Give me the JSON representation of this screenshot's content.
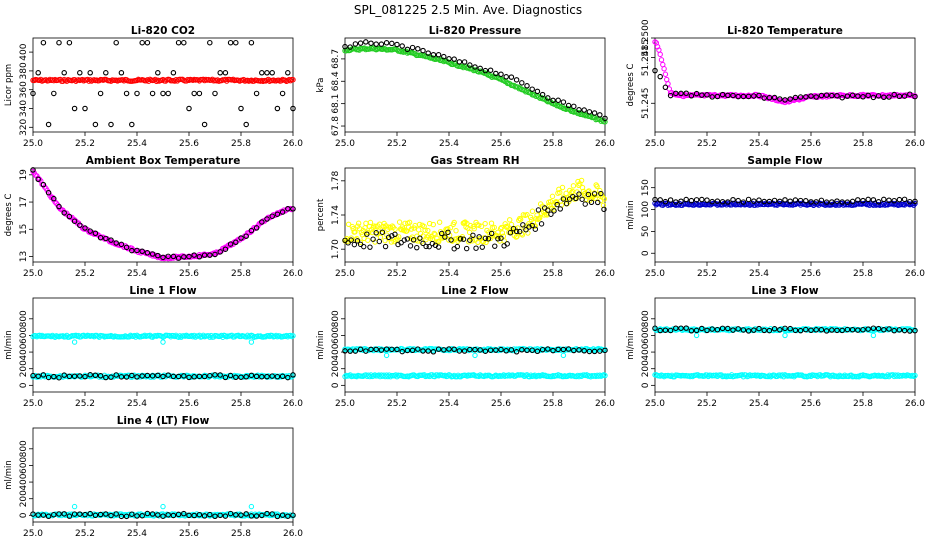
{
  "page_title": "SPL_081225  2.5 Min. Ave. Diagnostics",
  "chart_data": [
    {
      "id": "co2",
      "type": "scatter",
      "title": "Li-820 CO2",
      "xlabel": "",
      "ylabel": "Licor ppm",
      "xlim": [
        25.0,
        26.0
      ],
      "ylim": [
        315,
        415
      ],
      "x_ticks": [
        25.0,
        25.2,
        25.4,
        25.6,
        25.8,
        26.0
      ],
      "x_tick_labels": [
        "25.0",
        "25.2",
        "25.4",
        "25.6",
        "25.8",
        "26.0"
      ],
      "y_ticks": [
        320,
        340,
        360,
        380,
        400
      ],
      "y_tick_labels": [
        "320",
        "340",
        "360",
        "380",
        "400"
      ],
      "series": [
        {
          "name": "primary",
          "color": "#ff0000",
          "kind": "dense",
          "values_desc": "constant",
          "y": 370
        },
        {
          "name": "secondary",
          "color": "#000000",
          "kind": "band_scatter",
          "y_levels": [
            410,
            378,
            356,
            340,
            323
          ]
        }
      ]
    },
    {
      "id": "pressure",
      "type": "scatter",
      "title": "Li-820 Pressure",
      "xlabel": "",
      "ylabel": "kPa",
      "xlim": [
        25.0,
        26.0
      ],
      "ylim": [
        67.72,
        68.98
      ],
      "x_ticks": [
        25.0,
        25.2,
        25.4,
        25.6,
        25.8,
        26.0
      ],
      "x_tick_labels": [
        "25.0",
        "25.2",
        "25.4",
        "25.6",
        "25.8",
        "26.0"
      ],
      "y_ticks": [
        67.8,
        68.1,
        68.4,
        68.7
      ],
      "y_tick_labels": [
        "67.8",
        "68.1",
        "68.4",
        "68.7"
      ],
      "series": [
        {
          "name": "primary",
          "color": "#22cc22",
          "kind": "dense",
          "x": [
            25.0,
            25.1,
            25.2,
            25.3,
            25.4,
            25.5,
            25.6,
            25.7,
            25.8,
            25.9,
            26.0
          ],
          "y": [
            68.82,
            68.84,
            68.82,
            68.74,
            68.65,
            68.55,
            68.42,
            68.26,
            68.1,
            67.97,
            67.86
          ]
        },
        {
          "name": "secondary",
          "color": "#000000",
          "kind": "sparse",
          "x": [
            25.0,
            25.1,
            25.2,
            25.3,
            25.4,
            25.5,
            25.6,
            25.7,
            25.8,
            25.9,
            26.0
          ],
          "y": [
            68.86,
            68.92,
            68.88,
            68.8,
            68.7,
            68.6,
            68.5,
            68.34,
            68.16,
            68.03,
            67.92
          ]
        }
      ]
    },
    {
      "id": "li_temp",
      "type": "scatter",
      "title": "Li-820 Temperature",
      "xlabel": "",
      "ylabel": "degrees C",
      "xlim": [
        25.0,
        26.0
      ],
      "ylim": [
        51.2428,
        51.25
      ],
      "x_ticks": [
        25.0,
        25.2,
        25.4,
        25.6,
        25.8,
        26.0
      ],
      "x_tick_labels": [
        "25.0",
        "25.2",
        "25.4",
        "25.6",
        "25.8",
        "26.0"
      ],
      "y_ticks": [
        51.245,
        51.2485,
        51.25
      ],
      "y_tick_labels": [
        "51.245",
        "51.2485",
        "51.2500"
      ],
      "series": [
        {
          "name": "primary",
          "color": "#ff00ff",
          "kind": "dense",
          "x": [
            25.0,
            25.02,
            25.04,
            25.06,
            25.1,
            25.4,
            25.5,
            25.6,
            25.7,
            25.8,
            26.0
          ],
          "y": [
            51.2498,
            51.2488,
            51.2472,
            51.2458,
            51.2456,
            51.2456,
            51.2451,
            51.2455,
            51.2456,
            51.2456,
            51.2456
          ]
        },
        {
          "name": "secondary",
          "color": "#000000",
          "kind": "sparse",
          "x": [
            25.0,
            25.03,
            25.06,
            25.2,
            25.4,
            25.5,
            25.6,
            26.0
          ],
          "y": [
            51.2476,
            51.2466,
            51.2457,
            51.2456,
            51.2455,
            51.2453,
            51.2455,
            51.2456
          ]
        }
      ]
    },
    {
      "id": "ambient",
      "type": "scatter",
      "title": "Ambient Box Temperature",
      "xlabel": "",
      "ylabel": "degrees C",
      "xlim": [
        25.0,
        26.0
      ],
      "ylim": [
        12.6,
        19.5
      ],
      "x_ticks": [
        25.0,
        25.2,
        25.4,
        25.6,
        25.8,
        26.0
      ],
      "x_tick_labels": [
        "25.0",
        "25.2",
        "25.4",
        "25.6",
        "25.8",
        "26.0"
      ],
      "y_ticks": [
        13,
        15,
        17,
        19
      ],
      "y_tick_labels": [
        "13",
        "15",
        "17",
        "19"
      ],
      "series": [
        {
          "name": "primary",
          "color": "#ff00ff",
          "kind": "dense",
          "x": [
            25.0,
            25.1,
            25.2,
            25.3,
            25.4,
            25.5,
            25.6,
            25.7,
            25.8,
            25.9,
            25.98
          ],
          "y": [
            19.3,
            16.6,
            15.0,
            14.1,
            13.4,
            12.9,
            13.0,
            13.2,
            14.3,
            15.8,
            16.5
          ]
        },
        {
          "name": "secondary",
          "color": "#000000",
          "kind": "sparse",
          "x": [
            25.0,
            25.1,
            25.2,
            25.3,
            25.4,
            25.5,
            25.6,
            25.7,
            25.8,
            25.9,
            25.98
          ],
          "y": [
            19.3,
            16.6,
            15.0,
            14.1,
            13.4,
            12.9,
            13.0,
            13.2,
            14.3,
            15.8,
            16.5
          ]
        }
      ]
    },
    {
      "id": "rh",
      "type": "scatter",
      "title": "Gas Stream RH",
      "xlabel": "",
      "ylabel": "percent",
      "xlim": [
        25.0,
        26.0
      ],
      "ylim": [
        1.685,
        1.795
      ],
      "x_ticks": [
        25.0,
        25.2,
        25.4,
        25.6,
        25.8,
        26.0
      ],
      "x_tick_labels": [
        "25.0",
        "25.2",
        "25.4",
        "25.6",
        "25.8",
        "26.0"
      ],
      "y_ticks": [
        1.7,
        1.74,
        1.78
      ],
      "y_tick_labels": [
        "1.70",
        "1.74",
        "1.78"
      ],
      "series": [
        {
          "name": "primary",
          "color": "#ffff00",
          "kind": "noisy",
          "x": [
            25.0,
            25.2,
            25.4,
            25.6,
            25.7,
            25.8,
            25.9,
            26.0
          ],
          "y": [
            1.72,
            1.72,
            1.72,
            1.72,
            1.73,
            1.755,
            1.77,
            1.76
          ],
          "noise": 0.012
        },
        {
          "name": "secondary",
          "color": "#000000",
          "kind": "noisy_sparse",
          "x": [
            25.0,
            25.2,
            25.4,
            25.6,
            25.7,
            25.8,
            25.9,
            26.0
          ],
          "y": [
            1.71,
            1.71,
            1.71,
            1.71,
            1.725,
            1.75,
            1.765,
            1.755
          ],
          "noise": 0.01
        }
      ]
    },
    {
      "id": "sample",
      "type": "scatter",
      "title": "Sample Flow",
      "xlabel": "",
      "ylabel": "ml/min",
      "xlim": [
        25.0,
        26.0
      ],
      "ylim": [
        -20,
        195
      ],
      "x_ticks": [
        25.0,
        25.2,
        25.4,
        25.6,
        25.8,
        26.0
      ],
      "x_tick_labels": [
        "25.0",
        "25.2",
        "25.4",
        "25.6",
        "25.8",
        "26.0"
      ],
      "y_ticks": [
        0,
        50,
        100,
        150
      ],
      "y_tick_labels": [
        "0",
        "50",
        "100",
        "150"
      ],
      "series": [
        {
          "name": "primary",
          "color": "#0000cc",
          "kind": "dense",
          "values_desc": "constant",
          "y": 112
        },
        {
          "name": "secondary",
          "color": "#000000",
          "kind": "sparse",
          "values_desc": "constant",
          "y": 120
        }
      ]
    },
    {
      "id": "line1",
      "type": "scatter",
      "title": "Line 1 Flow",
      "xlabel": "",
      "ylabel": "ml/min",
      "xlim": [
        25.0,
        26.0
      ],
      "ylim": [
        -80,
        1050
      ],
      "x_ticks": [
        25.0,
        25.2,
        25.4,
        25.6,
        25.8,
        26.0
      ],
      "x_tick_labels": [
        "25.0",
        "25.2",
        "25.4",
        "25.6",
        "25.8",
        "26.0"
      ],
      "y_ticks": [
        0,
        200,
        400,
        600,
        800
      ],
      "y_tick_labels": [
        "0",
        "200",
        "400",
        "600",
        "800"
      ],
      "series": [
        {
          "name": "primary_high",
          "color": "#00ffff",
          "kind": "dense",
          "values_desc": "constant",
          "y": 590
        },
        {
          "name": "primary_low",
          "color": "#00ffff",
          "kind": "dense",
          "values_desc": "constant",
          "y": 110
        },
        {
          "name": "secondary",
          "color": "#000000",
          "kind": "sparse",
          "values_desc": "constant",
          "y": 110
        }
      ]
    },
    {
      "id": "line2",
      "type": "scatter",
      "title": "Line 2 Flow",
      "xlabel": "",
      "ylabel": "ml/min",
      "xlim": [
        25.0,
        26.0
      ],
      "ylim": [
        -80,
        1050
      ],
      "x_ticks": [
        25.0,
        25.2,
        25.4,
        25.6,
        25.8,
        26.0
      ],
      "x_tick_labels": [
        "25.0",
        "25.2",
        "25.4",
        "25.6",
        "25.8",
        "26.0"
      ],
      "y_ticks": [
        0,
        200,
        400,
        600,
        800
      ],
      "y_tick_labels": [
        "0",
        "200",
        "400",
        "600",
        "800"
      ],
      "series": [
        {
          "name": "primary_high",
          "color": "#00ffff",
          "kind": "dense",
          "values_desc": "constant",
          "y": 430
        },
        {
          "name": "primary_low",
          "color": "#00ffff",
          "kind": "dense",
          "values_desc": "constant",
          "y": 115
        },
        {
          "name": "secondary",
          "color": "#000000",
          "kind": "sparse",
          "values_desc": "constant",
          "y": 420
        }
      ]
    },
    {
      "id": "line3",
      "type": "scatter",
      "title": "Line 3 Flow",
      "xlabel": "",
      "ylabel": "ml/min",
      "xlim": [
        25.0,
        26.0
      ],
      "ylim": [
        -80,
        1050
      ],
      "x_ticks": [
        25.0,
        25.2,
        25.4,
        25.6,
        25.8,
        26.0
      ],
      "x_tick_labels": [
        "25.0",
        "25.2",
        "25.4",
        "25.6",
        "25.8",
        "26.0"
      ],
      "y_ticks": [
        0,
        200,
        400,
        600,
        800
      ],
      "y_tick_labels": [
        "0",
        "200",
        "400",
        "600",
        "800"
      ],
      "series": [
        {
          "name": "primary_high",
          "color": "#00ffff",
          "kind": "dense",
          "values_desc": "constant",
          "y": 670
        },
        {
          "name": "primary_low",
          "color": "#00ffff",
          "kind": "dense",
          "values_desc": "constant",
          "y": 115
        },
        {
          "name": "secondary",
          "color": "#000000",
          "kind": "sparse",
          "values_desc": "constant",
          "y": 670
        }
      ]
    },
    {
      "id": "line4",
      "type": "scatter",
      "title": "Line 4 (LT) Flow",
      "xlabel": "",
      "ylabel": "ml/min",
      "xlim": [
        25.0,
        26.0
      ],
      "ylim": [
        -80,
        1050
      ],
      "x_ticks": [
        25.0,
        25.2,
        25.4,
        25.6,
        25.8,
        26.0
      ],
      "x_tick_labels": [
        "25.0",
        "25.2",
        "25.4",
        "25.6",
        "25.8",
        "26.0"
      ],
      "y_ticks": [
        0,
        200,
        400,
        600,
        800
      ],
      "y_tick_labels": [
        "0",
        "200",
        "400",
        "600",
        "800"
      ],
      "series": [
        {
          "name": "primary",
          "color": "#00ffff",
          "kind": "dense",
          "values_desc": "constant",
          "y": 5
        },
        {
          "name": "secondary",
          "color": "#000000",
          "kind": "sparse",
          "values_desc": "constant",
          "y": 5
        }
      ]
    }
  ]
}
